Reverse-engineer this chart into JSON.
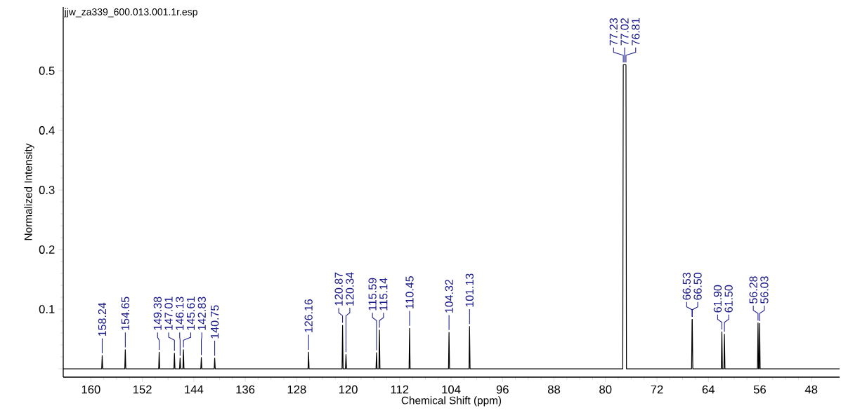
{
  "chart_data": {
    "type": "line",
    "title": "jjw_za339_600.013.001.1r.esp",
    "xlabel": "Chemical Shift (ppm)",
    "ylabel": "Normalized Intensity",
    "xlim": [
      164.3,
      43.6
    ],
    "ylim": [
      -0.014,
      0.607
    ],
    "xticks": [
      160,
      152,
      144,
      136,
      128,
      120,
      112,
      104,
      96,
      88,
      80,
      72,
      64,
      56,
      48
    ],
    "yticks": [
      {
        "value": 0,
        "label": null
      },
      0.1,
      0.2,
      0.3,
      0.4,
      0.5
    ],
    "marker": "none",
    "line_style": "solid",
    "series": [
      {
        "color": "#000000",
        "x": [
          164.3,
          158.32,
          158.24,
          158.16,
          154.73,
          154.65,
          154.57,
          149.46,
          149.38,
          149.3,
          147.09,
          147.01,
          146.93,
          146.21,
          146.13,
          146.05,
          145.69,
          145.61,
          145.53,
          142.91,
          142.83,
          142.75,
          140.83,
          140.75,
          140.67,
          126.24,
          126.16,
          126.08,
          120.95,
          120.87,
          120.79,
          120.42,
          120.34,
          120.26,
          115.67,
          115.59,
          115.51,
          115.22,
          115.14,
          115.06,
          110.53,
          110.45,
          110.37,
          104.4,
          104.32,
          104.24,
          101.21,
          101.13,
          101.05,
          77.31,
          77.23,
          77.02,
          76.81,
          76.73,
          66.61,
          66.53,
          66.5,
          66.42,
          61.98,
          61.9,
          61.82,
          61.58,
          61.5,
          61.42,
          56.36,
          56.28,
          56.2,
          56.11,
          56.03,
          55.95,
          43.6
        ],
        "values": [
          0,
          0,
          0.022,
          0,
          0,
          0.032,
          0,
          0,
          0.028,
          0,
          0,
          0.026,
          0,
          0,
          0.018,
          0,
          0,
          0.032,
          0,
          0,
          0.019,
          0,
          0,
          0.018,
          0,
          0,
          0.028,
          0,
          0,
          0.073,
          0,
          0,
          0.024,
          0,
          0,
          0.027,
          0,
          0,
          0.065,
          0,
          0,
          0.068,
          0,
          0,
          0.061,
          0,
          0,
          0.071,
          0,
          0,
          0.51,
          0.51,
          0.51,
          0,
          0,
          0.083,
          0.083,
          0,
          0,
          0.062,
          0,
          0,
          0.058,
          0,
          0,
          0.077,
          0,
          0,
          0.076,
          0,
          0
        ]
      }
    ],
    "annotations": [
      {
        "text": "158.24",
        "x": 158.24,
        "y": 0.022
      },
      {
        "text": "154.65",
        "x": 154.65,
        "y": 0.032
      },
      {
        "text": "149.38",
        "x": 149.38,
        "y": 0.028
      },
      {
        "text": "147.01",
        "x": 147.01,
        "y": 0.026
      },
      {
        "text": "146.13",
        "x": 146.13,
        "y": 0.018
      },
      {
        "text": "145.61",
        "x": 145.61,
        "y": 0.032
      },
      {
        "text": "142.83",
        "x": 142.83,
        "y": 0.019
      },
      {
        "text": "140.75",
        "x": 140.75,
        "y": 0.018
      },
      {
        "text": "126.16",
        "x": 126.16,
        "y": 0.028
      },
      {
        "text": "120.87",
        "x": 120.87,
        "y": 0.073
      },
      {
        "text": "120.34",
        "x": 120.34,
        "y": 0.024
      },
      {
        "text": "115.59",
        "x": 115.59,
        "y": 0.027
      },
      {
        "text": "115.14",
        "x": 115.14,
        "y": 0.065
      },
      {
        "text": "110.45",
        "x": 110.45,
        "y": 0.068
      },
      {
        "text": "104.32",
        "x": 104.32,
        "y": 0.061
      },
      {
        "text": "101.13",
        "x": 101.13,
        "y": 0.071
      },
      {
        "text": "77.23",
        "x": 77.23,
        "y": 0.51
      },
      {
        "text": "77.02",
        "x": 77.02,
        "y": 0.51
      },
      {
        "text": "76.81",
        "x": 76.81,
        "y": 0.51
      },
      {
        "text": "66.53",
        "x": 66.53,
        "y": 0.083
      },
      {
        "text": "66.50",
        "x": 66.5,
        "y": 0.083
      },
      {
        "text": "61.90",
        "x": 61.9,
        "y": 0.062
      },
      {
        "text": "61.50",
        "x": 61.5,
        "y": 0.058
      },
      {
        "text": "56.28",
        "x": 56.28,
        "y": 0.077
      },
      {
        "text": "56.03",
        "x": 56.03,
        "y": 0.076
      }
    ]
  }
}
